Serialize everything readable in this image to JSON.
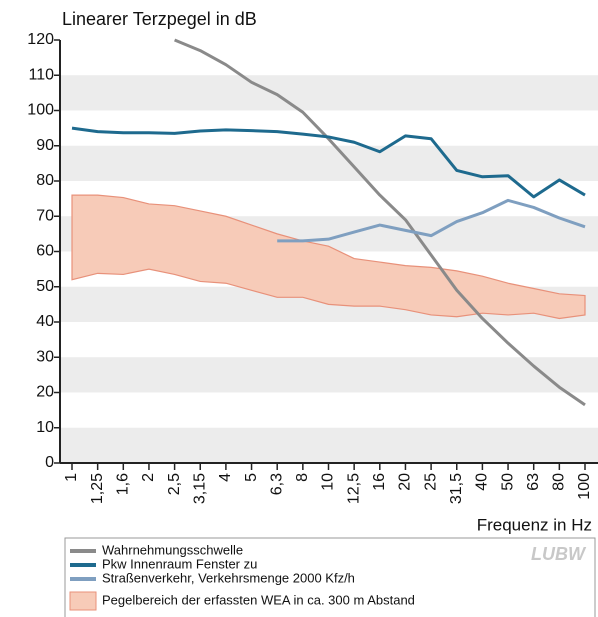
{
  "chart_data": {
    "type": "line",
    "title": "Linearer Terzpegel in dB",
    "x_label": "Frequenz in Hz",
    "logo": "LUBW",
    "categories": [
      "1",
      "1,25",
      "1,6",
      "2",
      "2,5",
      "3,15",
      "4",
      "5",
      "6,3",
      "8",
      "10",
      "12,5",
      "16",
      "20",
      "25",
      "31,5",
      "40",
      "50",
      "63",
      "80",
      "100"
    ],
    "ylim": [
      0,
      120
    ],
    "yticks": [
      0,
      10,
      20,
      30,
      40,
      50,
      60,
      70,
      80,
      90,
      100,
      110,
      120
    ],
    "series": [
      {
        "name": "Wahrnehmungsschwelle",
        "color": "#8a8a8a",
        "values": [
          null,
          null,
          null,
          null,
          120,
          117,
          113,
          108,
          104.5,
          99.5,
          92,
          84,
          76,
          69,
          59,
          49,
          41,
          34,
          27.5,
          21.5,
          16.5
        ]
      },
      {
        "name": "Pkw Innenraum Fenster zu",
        "color": "#1e6a8e",
        "values": [
          95,
          94,
          93.7,
          93.7,
          93.5,
          94.2,
          94.5,
          94.3,
          94,
          93.3,
          92.5,
          91,
          88.3,
          92.8,
          92,
          83,
          81.2,
          81.5,
          75.5,
          80.3,
          76
        ]
      },
      {
        "name": "Straßenverkehr, Verkehrsmenge 2000 Kfz/h",
        "color": "#7f9fc0",
        "values": [
          null,
          null,
          null,
          null,
          null,
          null,
          null,
          null,
          63,
          63,
          63.5,
          65.5,
          67.5,
          66,
          64.5,
          68.5,
          71,
          74.5,
          72.5,
          69.5,
          67
        ]
      },
      {
        "name": "Pegelbereich der erfassten WEA in ca. 300 m Abstand",
        "type": "range",
        "color": "#f7cbb8",
        "values": [
          76,
          76,
          75.3,
          73.5,
          73,
          71.5,
          70,
          67.5,
          65,
          63,
          61.5,
          58,
          57,
          56,
          55.5,
          54.5,
          53,
          51,
          49.5,
          48,
          47.5
        ],
        "lower": [
          52,
          53.8,
          53.5,
          55,
          53.5,
          51.5,
          51,
          49,
          47,
          47,
          45,
          44.5,
          44.5,
          43.5,
          42,
          41.5,
          42.5,
          42,
          42.5,
          41,
          42
        ]
      }
    ]
  }
}
